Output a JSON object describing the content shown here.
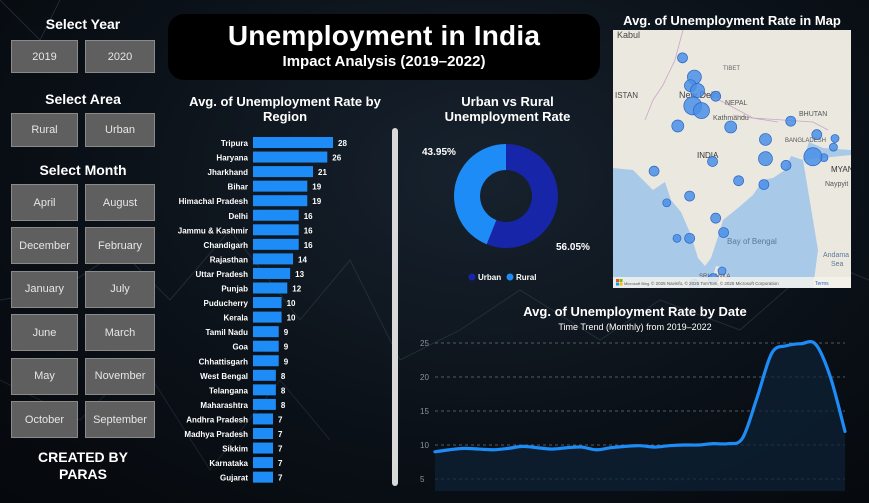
{
  "filters": {
    "year_label": "Select Year",
    "years": [
      "2019",
      "2020"
    ],
    "area_label": "Select Area",
    "areas": [
      "Rural",
      "Urban"
    ],
    "month_label": "Select Month",
    "months": [
      "April",
      "August",
      "December",
      "February",
      "January",
      "July",
      "June",
      "March",
      "May",
      "November",
      "October",
      "September"
    ]
  },
  "credit": "CREATED BY PARAS",
  "header": {
    "title": "Unemployment in India",
    "subtitle": "Impact Analysis (2019–2022)"
  },
  "colors": {
    "bar": "#1e8cf6",
    "urban": "#1726a8",
    "rural": "#1e8cf6",
    "line": "#1e8cf6"
  },
  "chart_data": [
    {
      "type": "bar",
      "title": "Avg. of Unemployment Rate by Region",
      "categories": [
        "Tripura",
        "Haryana",
        "Jharkhand",
        "Bihar",
        "Himachal Pradesh",
        "Delhi",
        "Jammu & Kashmir",
        "Chandigarh",
        "Rajasthan",
        "Uttar Pradesh",
        "Punjab",
        "Puducherry",
        "Kerala",
        "Tamil Nadu",
        "Goa",
        "Chhattisgarh",
        "West Bengal",
        "Telangana",
        "Maharashtra",
        "Andhra Pradesh",
        "Madhya Pradesh",
        "Sikkim",
        "Karnataka",
        "Gujarat"
      ],
      "values": [
        28,
        26,
        21,
        19,
        19,
        16,
        16,
        16,
        14,
        13,
        12,
        10,
        10,
        9,
        9,
        9,
        8,
        8,
        8,
        7,
        7,
        7,
        7,
        7
      ]
    },
    {
      "type": "pie",
      "title": "Urban vs Rural Unemployment Rate",
      "categories": [
        "Urban",
        "Rural"
      ],
      "values": [
        56.05,
        43.95
      ],
      "labels": [
        "56.05%",
        "43.95%"
      ],
      "legend": "bottom"
    },
    {
      "type": "area",
      "title": "Avg. of Unemployment Rate by Date",
      "subtitle": "Time Trend (Monthly) from 2019–2022",
      "yticks": [
        5,
        10,
        15,
        20,
        25
      ],
      "ylim": [
        5,
        25
      ],
      "values": [
        9,
        9.3,
        9.5,
        9.4,
        9.3,
        9.5,
        9.8,
        9.6,
        9.4,
        9.6,
        9.7,
        9.3,
        9.6,
        9.8,
        9.9,
        9.7,
        9.9,
        10,
        10,
        10.2,
        10.2,
        11,
        17,
        23.5,
        24.6,
        24.9,
        24.8,
        20,
        12
      ]
    }
  ],
  "map": {
    "title": "Avg. of Unemployment Rate in Map",
    "labels": [
      "Kabul",
      "TIBET",
      "ISTAN",
      "New Delhi",
      "NEPAL",
      "Kathmandu",
      "BHUTAN",
      "BANGLADESH",
      "INDIA",
      "MYANM",
      "Naypyit",
      "Bay of Bengal",
      "Andama",
      "Sea",
      "SRI LANKA"
    ],
    "attribution": "© 2025 Navinfo, © 2025 TomTom, © 2025 Microsoft Corporation",
    "terms": "Terms",
    "brand": "Microsoft Bing",
    "bubbles": [
      {
        "lon": 74.8,
        "lat": 34.1,
        "r": 5
      },
      {
        "lon": 76.3,
        "lat": 32.1,
        "r": 7
      },
      {
        "lon": 75.8,
        "lat": 31.2,
        "r": 6
      },
      {
        "lon": 76.7,
        "lat": 30.7,
        "r": 7
      },
      {
        "lon": 76.1,
        "lat": 29.1,
        "r": 9
      },
      {
        "lon": 77.2,
        "lat": 28.6,
        "r": 8
      },
      {
        "lon": 74.2,
        "lat": 27.0,
        "r": 6
      },
      {
        "lon": 80.9,
        "lat": 26.9,
        "r": 6
      },
      {
        "lon": 79.0,
        "lat": 30.1,
        "r": 5
      },
      {
        "lon": 85.3,
        "lat": 25.6,
        "r": 6
      },
      {
        "lon": 85.3,
        "lat": 23.6,
        "r": 7
      },
      {
        "lon": 87.9,
        "lat": 22.9,
        "r": 5
      },
      {
        "lon": 91.8,
        "lat": 26.1,
        "r": 5
      },
      {
        "lon": 93.9,
        "lat": 24.8,
        "r": 4
      },
      {
        "lon": 92.7,
        "lat": 23.7,
        "r": 4
      },
      {
        "lon": 91.3,
        "lat": 23.8,
        "r": 9
      },
      {
        "lon": 88.5,
        "lat": 27.5,
        "r": 5
      },
      {
        "lon": 94.1,
        "lat": 25.7,
        "r": 4
      },
      {
        "lon": 71.2,
        "lat": 22.3,
        "r": 5
      },
      {
        "lon": 78.6,
        "lat": 23.3,
        "r": 5
      },
      {
        "lon": 81.9,
        "lat": 21.3,
        "r": 5
      },
      {
        "lon": 85.1,
        "lat": 20.9,
        "r": 5
      },
      {
        "lon": 75.7,
        "lat": 19.7,
        "r": 5
      },
      {
        "lon": 79.0,
        "lat": 17.4,
        "r": 5
      },
      {
        "lon": 80.0,
        "lat": 15.9,
        "r": 5
      },
      {
        "lon": 74.1,
        "lat": 15.3,
        "r": 4
      },
      {
        "lon": 75.7,
        "lat": 15.3,
        "r": 5
      },
      {
        "lon": 78.7,
        "lat": 11.1,
        "r": 5
      },
      {
        "lon": 76.3,
        "lat": 10.5,
        "r": 5
      },
      {
        "lon": 79.8,
        "lat": 11.9,
        "r": 4
      },
      {
        "lon": 72.8,
        "lat": 19.0,
        "r": 4
      }
    ]
  }
}
